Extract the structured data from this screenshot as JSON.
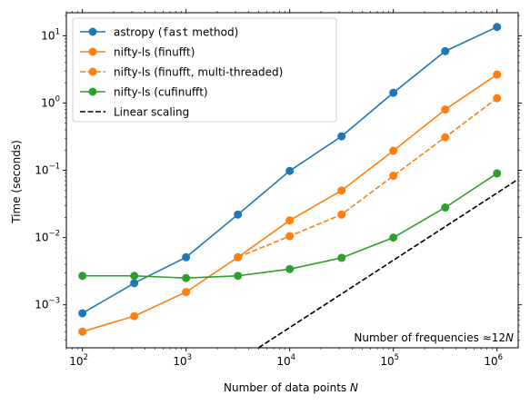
{
  "chart_data": {
    "type": "line",
    "xscale": "log",
    "yscale": "log",
    "xlabel_text": "Number of data points ",
    "xlabel_var": "N",
    "ylabel": "Time (seconds)",
    "xlim": [
      70,
      1600000
    ],
    "ylim": [
      0.00023,
      22
    ],
    "x_ticks": [
      {
        "value": 100,
        "base": "10",
        "exp": "2"
      },
      {
        "value": 1000,
        "base": "10",
        "exp": "3"
      },
      {
        "value": 10000,
        "base": "10",
        "exp": "4"
      },
      {
        "value": 100000,
        "base": "10",
        "exp": "5"
      },
      {
        "value": 1000000,
        "base": "10",
        "exp": "6"
      }
    ],
    "y_ticks": [
      {
        "value": 0.001,
        "base": "10",
        "exp": "−3"
      },
      {
        "value": 0.01,
        "base": "10",
        "exp": "−2"
      },
      {
        "value": 0.1,
        "base": "10",
        "exp": "−1"
      },
      {
        "value": 1,
        "base": "10",
        "exp": "0"
      },
      {
        "value": 10,
        "base": "10",
        "exp": "1"
      }
    ],
    "grid": false,
    "legend_position": "top-left",
    "x": [
      100,
      316,
      1000,
      3162,
      10000,
      31623,
      100000,
      316228,
      1000000
    ],
    "series": [
      {
        "name_plain": "astropy (",
        "name_mono": "fast",
        "name_plain2": " method)",
        "color": "#1f77b4",
        "dash": "solid",
        "marker": true,
        "values": [
          0.00075,
          0.0021,
          0.0051,
          0.022,
          0.098,
          0.32,
          1.42,
          5.9,
          13.5
        ]
      },
      {
        "name": "nifty-ls (finufft)",
        "color": "#ff7f0e",
        "dash": "solid",
        "marker": true,
        "values": [
          0.0004,
          0.00068,
          0.00155,
          0.0051,
          0.018,
          0.05,
          0.195,
          0.8,
          2.65
        ]
      },
      {
        "name": "nifty-ls (finufft, multi-threaded)",
        "color": "#ff7f0e",
        "dash": "dashed",
        "marker": true,
        "x": [
          3162,
          10000,
          31623,
          100000,
          316228,
          1000000
        ],
        "values": [
          0.0051,
          0.0105,
          0.022,
          0.083,
          0.31,
          1.18
        ]
      },
      {
        "name": "nifty-ls (cufinufft)",
        "color": "#2ca02c",
        "dash": "solid",
        "marker": true,
        "values": [
          0.0027,
          0.0027,
          0.0025,
          0.0027,
          0.0034,
          0.005,
          0.01,
          0.028,
          0.09
        ]
      },
      {
        "name": "Linear scaling",
        "color": "#000000",
        "dash": "dashed",
        "marker": false,
        "x": [
          5000,
          1600000
        ],
        "values": [
          0.00023,
          0.0736
        ]
      }
    ],
    "annotation": {
      "text": "Number of frequencies ",
      "formula": "≈12",
      "var": "N"
    }
  }
}
